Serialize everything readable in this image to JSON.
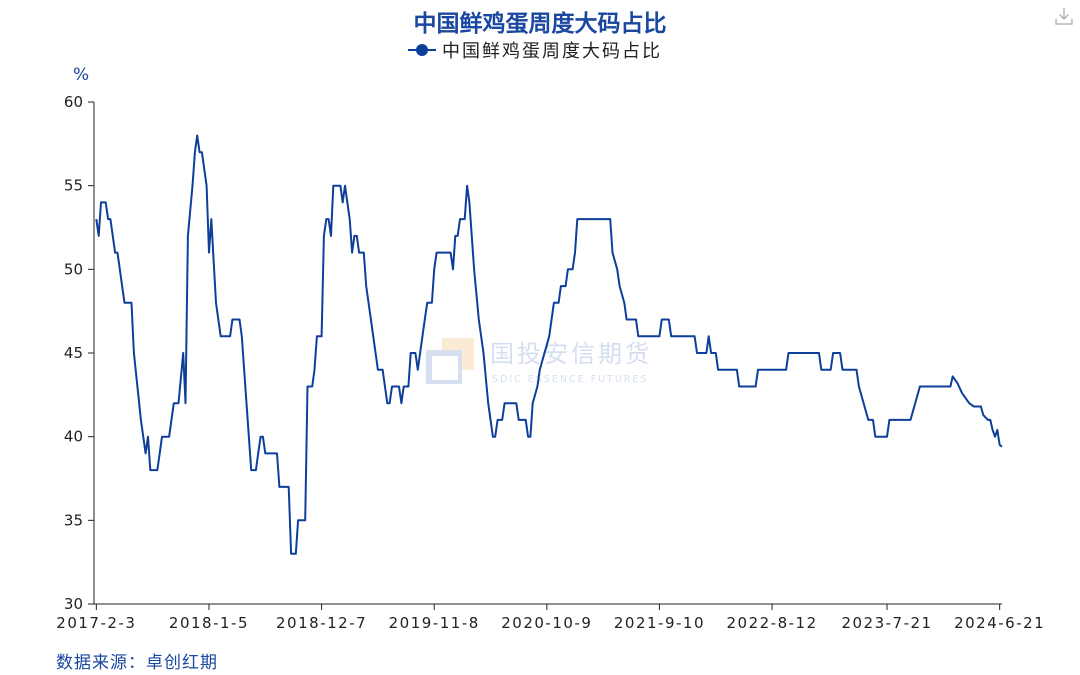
{
  "title": "中国鲜鸡蛋周度大码占比",
  "legend": {
    "label": "中国鲜鸡蛋周度大码占比"
  },
  "icons": {
    "download": "download-icon",
    "watermark_logo": "sdic-logo"
  },
  "watermark": {
    "cn": "国投安信期货",
    "en": "SDIC ESSENCE FUTURES"
  },
  "source": "数据来源：卓创红期",
  "colors": {
    "line": "#0d3f9a",
    "title": "#1a47a0",
    "axis": "#222222"
  },
  "chart_data": {
    "type": "line",
    "ylabel": "%",
    "ylim": [
      30,
      60
    ],
    "yticks": [
      30,
      35,
      40,
      45,
      50,
      55,
      60
    ],
    "xlim": [
      "2017-01-27",
      "2024-06-28"
    ],
    "xticks": [
      "2017-2-3",
      "2018-1-5",
      "2018-12-7",
      "2019-11-8",
      "2020-10-9",
      "2021-9-10",
      "2022-8-12",
      "2023-7-21",
      "2024-6-21"
    ],
    "series": [
      {
        "name": "中国鲜鸡蛋周度大码占比",
        "color": "#0d3f9a",
        "points": [
          [
            "2017-02-03",
            53
          ],
          [
            "2017-02-10",
            52
          ],
          [
            "2017-02-17",
            54
          ],
          [
            "2017-03-03",
            54
          ],
          [
            "2017-03-10",
            53
          ],
          [
            "2017-03-17",
            53
          ],
          [
            "2017-03-31",
            51
          ],
          [
            "2017-04-07",
            51
          ],
          [
            "2017-04-14",
            50
          ],
          [
            "2017-04-28",
            48
          ],
          [
            "2017-05-19",
            48
          ],
          [
            "2017-05-26",
            45
          ],
          [
            "2017-06-16",
            41
          ],
          [
            "2017-06-30",
            39
          ],
          [
            "2017-07-07",
            40
          ],
          [
            "2017-07-14",
            38
          ],
          [
            "2017-08-04",
            38
          ],
          [
            "2017-08-11",
            39
          ],
          [
            "2017-08-18",
            40
          ],
          [
            "2017-09-08",
            40
          ],
          [
            "2017-09-22",
            42
          ],
          [
            "2017-10-06",
            42
          ],
          [
            "2017-10-20",
            45
          ],
          [
            "2017-10-27",
            42
          ],
          [
            "2017-11-03",
            52
          ],
          [
            "2017-11-17",
            55
          ],
          [
            "2017-11-24",
            57
          ],
          [
            "2017-12-01",
            58
          ],
          [
            "2017-12-08",
            57
          ],
          [
            "2017-12-15",
            57
          ],
          [
            "2017-12-29",
            55
          ],
          [
            "2018-01-05",
            51
          ],
          [
            "2018-01-12",
            53
          ],
          [
            "2018-01-26",
            48
          ],
          [
            "2018-02-09",
            46
          ],
          [
            "2018-03-09",
            46
          ],
          [
            "2018-03-16",
            47
          ],
          [
            "2018-04-06",
            47
          ],
          [
            "2018-04-13",
            46
          ],
          [
            "2018-04-27",
            42
          ],
          [
            "2018-05-11",
            38
          ],
          [
            "2018-05-25",
            38
          ],
          [
            "2018-06-01",
            39
          ],
          [
            "2018-06-08",
            40
          ],
          [
            "2018-06-15",
            40
          ],
          [
            "2018-06-22",
            39
          ],
          [
            "2018-07-27",
            39
          ],
          [
            "2018-08-03",
            37
          ],
          [
            "2018-08-31",
            37
          ],
          [
            "2018-09-07",
            33
          ],
          [
            "2018-09-21",
            33
          ],
          [
            "2018-09-28",
            35
          ],
          [
            "2018-10-19",
            35
          ],
          [
            "2018-10-26",
            43
          ],
          [
            "2018-11-09",
            43
          ],
          [
            "2018-11-16",
            44
          ],
          [
            "2018-11-23",
            46
          ],
          [
            "2018-12-07",
            46
          ],
          [
            "2018-12-14",
            52
          ],
          [
            "2018-12-21",
            53
          ],
          [
            "2018-12-28",
            53
          ],
          [
            "2019-01-04",
            52
          ],
          [
            "2019-01-11",
            55
          ],
          [
            "2019-02-01",
            55
          ],
          [
            "2019-02-08",
            54
          ],
          [
            "2019-02-15",
            55
          ],
          [
            "2019-03-01",
            53
          ],
          [
            "2019-03-08",
            51
          ],
          [
            "2019-03-15",
            52
          ],
          [
            "2019-03-22",
            52
          ],
          [
            "2019-03-29",
            51
          ],
          [
            "2019-04-12",
            51
          ],
          [
            "2019-04-19",
            49
          ],
          [
            "2019-05-03",
            47
          ],
          [
            "2019-05-24",
            44
          ],
          [
            "2019-06-07",
            44
          ],
          [
            "2019-06-21",
            42
          ],
          [
            "2019-06-28",
            42
          ],
          [
            "2019-07-05",
            43
          ],
          [
            "2019-07-26",
            43
          ],
          [
            "2019-08-02",
            42
          ],
          [
            "2019-08-09",
            43
          ],
          [
            "2019-08-23",
            43
          ],
          [
            "2019-08-30",
            45
          ],
          [
            "2019-09-13",
            45
          ],
          [
            "2019-09-20",
            44
          ],
          [
            "2019-09-27",
            45
          ],
          [
            "2019-10-11",
            47
          ],
          [
            "2019-10-18",
            48
          ],
          [
            "2019-11-01",
            48
          ],
          [
            "2019-11-08",
            50
          ],
          [
            "2019-11-15",
            51
          ],
          [
            "2019-12-27",
            51
          ],
          [
            "2020-01-03",
            50
          ],
          [
            "2020-01-10",
            52
          ],
          [
            "2020-01-17",
            52
          ],
          [
            "2020-01-24",
            53
          ],
          [
            "2020-02-07",
            53
          ],
          [
            "2020-02-14",
            55
          ],
          [
            "2020-02-21",
            54
          ],
          [
            "2020-03-06",
            50
          ],
          [
            "2020-03-20",
            47
          ],
          [
            "2020-04-03",
            45
          ],
          [
            "2020-04-17",
            42
          ],
          [
            "2020-05-01",
            40
          ],
          [
            "2020-05-08",
            40
          ],
          [
            "2020-05-15",
            41
          ],
          [
            "2020-05-29",
            41
          ],
          [
            "2020-06-05",
            42
          ],
          [
            "2020-07-10",
            42
          ],
          [
            "2020-07-17",
            41
          ],
          [
            "2020-08-07",
            41
          ],
          [
            "2020-08-14",
            40
          ],
          [
            "2020-08-21",
            40
          ],
          [
            "2020-08-28",
            42
          ],
          [
            "2020-09-11",
            43
          ],
          [
            "2020-09-18",
            44
          ],
          [
            "2020-10-16",
            46
          ],
          [
            "2020-10-30",
            48
          ],
          [
            "2020-11-13",
            48
          ],
          [
            "2020-11-20",
            49
          ],
          [
            "2020-12-04",
            49
          ],
          [
            "2020-12-11",
            50
          ],
          [
            "2020-12-25",
            50
          ],
          [
            "2021-01-01",
            51
          ],
          [
            "2021-01-08",
            53
          ],
          [
            "2021-04-16",
            53
          ],
          [
            "2021-04-23",
            51
          ],
          [
            "2021-05-07",
            50
          ],
          [
            "2021-05-14",
            49
          ],
          [
            "2021-05-28",
            48
          ],
          [
            "2021-06-04",
            47
          ],
          [
            "2021-07-02",
            47
          ],
          [
            "2021-07-09",
            46
          ],
          [
            "2021-09-10",
            46
          ],
          [
            "2021-09-17",
            47
          ],
          [
            "2021-10-08",
            47
          ],
          [
            "2021-10-15",
            46
          ],
          [
            "2021-12-24",
            46
          ],
          [
            "2021-12-31",
            45
          ],
          [
            "2022-01-28",
            45
          ],
          [
            "2022-02-04",
            46
          ],
          [
            "2022-02-11",
            45
          ],
          [
            "2022-02-25",
            45
          ],
          [
            "2022-03-04",
            44
          ],
          [
            "2022-04-29",
            44
          ],
          [
            "2022-05-06",
            43
          ],
          [
            "2022-06-24",
            43
          ],
          [
            "2022-07-01",
            44
          ],
          [
            "2022-09-23",
            44
          ],
          [
            "2022-09-30",
            45
          ],
          [
            "2022-12-30",
            45
          ],
          [
            "2023-01-06",
            44
          ],
          [
            "2023-02-03",
            44
          ],
          [
            "2023-02-10",
            45
          ],
          [
            "2023-03-03",
            45
          ],
          [
            "2023-03-10",
            44
          ],
          [
            "2023-04-21",
            44
          ],
          [
            "2023-04-28",
            43
          ],
          [
            "2023-05-12",
            42
          ],
          [
            "2023-05-26",
            41
          ],
          [
            "2023-06-09",
            41
          ],
          [
            "2023-06-16",
            40
          ],
          [
            "2023-07-21",
            40
          ],
          [
            "2023-07-28",
            41
          ],
          [
            "2023-09-29",
            41
          ],
          [
            "2023-10-27",
            43
          ],
          [
            "2024-01-26",
            43
          ],
          [
            "2024-02-02",
            43.6
          ],
          [
            "2024-02-16",
            43.2
          ],
          [
            "2024-03-01",
            42.6
          ],
          [
            "2024-03-22",
            42
          ],
          [
            "2024-04-05",
            41.8
          ],
          [
            "2024-04-26",
            41.8
          ],
          [
            "2024-05-03",
            41.3
          ],
          [
            "2024-05-17",
            41
          ],
          [
            "2024-05-24",
            41
          ],
          [
            "2024-05-31",
            40.4
          ],
          [
            "2024-06-07",
            40
          ],
          [
            "2024-06-14",
            40.4
          ],
          [
            "2024-06-21",
            39.5
          ],
          [
            "2024-06-28",
            39.4
          ]
        ]
      }
    ]
  }
}
